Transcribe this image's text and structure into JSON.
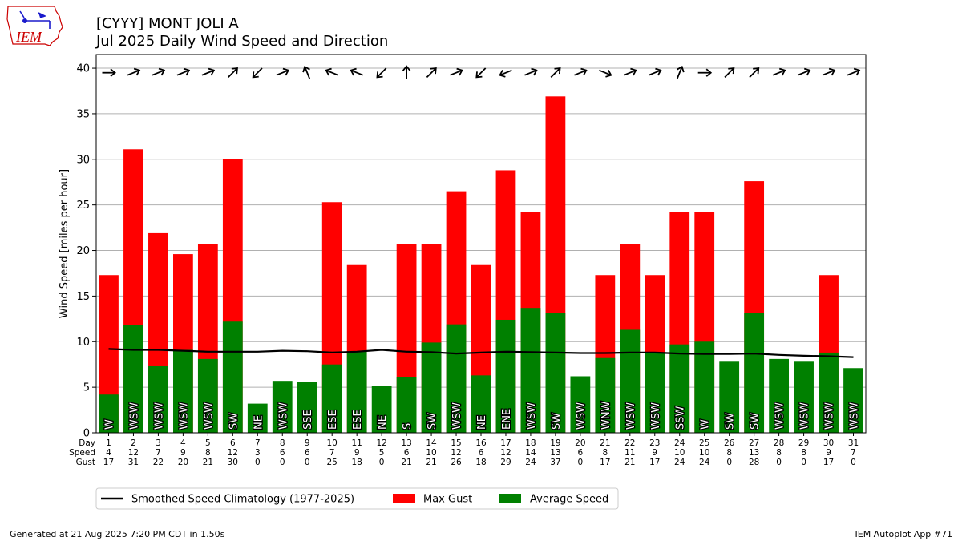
{
  "header": {
    "title_line1": "[CYYY] MONT JOLI A",
    "title_line2": "Jul 2025 Daily Wind Speed and Direction",
    "logo_text": "IEM"
  },
  "footer": {
    "left": "Generated at 21 Aug 2025 7:20 PM CDT in 1.50s",
    "right": "IEM Autoplot App #71"
  },
  "chart_data": {
    "type": "bar",
    "ylabel": "Wind Speed [miles per hour]",
    "ylim": [
      0,
      41.5
    ],
    "yticks": [
      0,
      5,
      10,
      15,
      20,
      25,
      30,
      35,
      40
    ],
    "grid": true,
    "row_labels": [
      "Day",
      "Speed",
      "Gust"
    ],
    "categories": [
      "1",
      "2",
      "3",
      "4",
      "5",
      "6",
      "7",
      "8",
      "9",
      "10",
      "11",
      "12",
      "13",
      "14",
      "15",
      "16",
      "17",
      "18",
      "19",
      "20",
      "21",
      "22",
      "23",
      "24",
      "25",
      "26",
      "27",
      "28",
      "29",
      "30",
      "31"
    ],
    "speed_labels": [
      "4",
      "12",
      "7",
      "9",
      "8",
      "12",
      "3",
      "6",
      "6",
      "7",
      "9",
      "5",
      "6",
      "10",
      "12",
      "6",
      "12",
      "14",
      "13",
      "6",
      "8",
      "11",
      "9",
      "10",
      "10",
      "8",
      "13",
      "8",
      "8",
      "9",
      "7"
    ],
    "gust_labels": [
      "17",
      "31",
      "22",
      "20",
      "21",
      "30",
      "0",
      "0",
      "0",
      "25",
      "18",
      "0",
      "21",
      "21",
      "26",
      "18",
      "29",
      "24",
      "37",
      "0",
      "17",
      "21",
      "17",
      "24",
      "24",
      "0",
      "28",
      "0",
      "0",
      "17",
      "0"
    ],
    "series": [
      {
        "name": "Max Gust",
        "color": "#ff0000",
        "values": [
          17.3,
          31.1,
          21.9,
          19.6,
          20.7,
          30.0,
          0,
          0,
          0,
          25.3,
          18.4,
          0,
          20.7,
          20.7,
          26.5,
          18.4,
          28.8,
          24.2,
          36.9,
          0,
          17.3,
          20.7,
          17.3,
          24.2,
          24.2,
          0,
          27.6,
          0,
          0,
          17.3,
          0
        ]
      },
      {
        "name": "Average Speed",
        "color": "#008000",
        "values": [
          4.2,
          11.8,
          7.3,
          9.1,
          8.1,
          12.2,
          3.2,
          5.7,
          5.6,
          7.5,
          8.9,
          5.1,
          6.1,
          9.9,
          11.9,
          6.3,
          12.4,
          13.7,
          13.1,
          6.2,
          8.2,
          11.3,
          8.8,
          9.7,
          10.0,
          7.8,
          13.1,
          8.1,
          7.8,
          8.8,
          7.1
        ]
      },
      {
        "name": "Smoothed Speed Climatology (1977-2025)",
        "color": "#000000",
        "values": [
          9.2,
          9.1,
          9.1,
          9.0,
          8.9,
          8.9,
          8.9,
          9.0,
          8.95,
          8.8,
          8.9,
          9.1,
          8.9,
          8.85,
          8.7,
          8.8,
          8.9,
          8.85,
          8.8,
          8.75,
          8.75,
          8.8,
          8.8,
          8.7,
          8.65,
          8.65,
          8.7,
          8.55,
          8.45,
          8.4,
          8.3
        ]
      }
    ],
    "directions": [
      "W",
      "WSW",
      "WSW",
      "WSW",
      "WSW",
      "SW",
      "NE",
      "WSW",
      "SSE",
      "ESE",
      "ESE",
      "NE",
      "S",
      "SW",
      "WSW",
      "NE",
      "ENE",
      "WSW",
      "SW",
      "WSW",
      "WNW",
      "WSW",
      "WSW",
      "SSW",
      "W",
      "SW",
      "SW",
      "WSW",
      "WSW",
      "WSW",
      "WSW"
    ],
    "direction_degrees": [
      270,
      248,
      248,
      248,
      248,
      225,
      45,
      248,
      158,
      112,
      112,
      45,
      180,
      225,
      248,
      45,
      68,
      248,
      225,
      248,
      292,
      248,
      248,
      202,
      270,
      225,
      225,
      248,
      248,
      248,
      248
    ],
    "legend": {
      "placement": "bottom-left",
      "entries": [
        "Smoothed Speed Climatology (1977-2025)",
        "Max Gust",
        "Average Speed"
      ]
    }
  }
}
